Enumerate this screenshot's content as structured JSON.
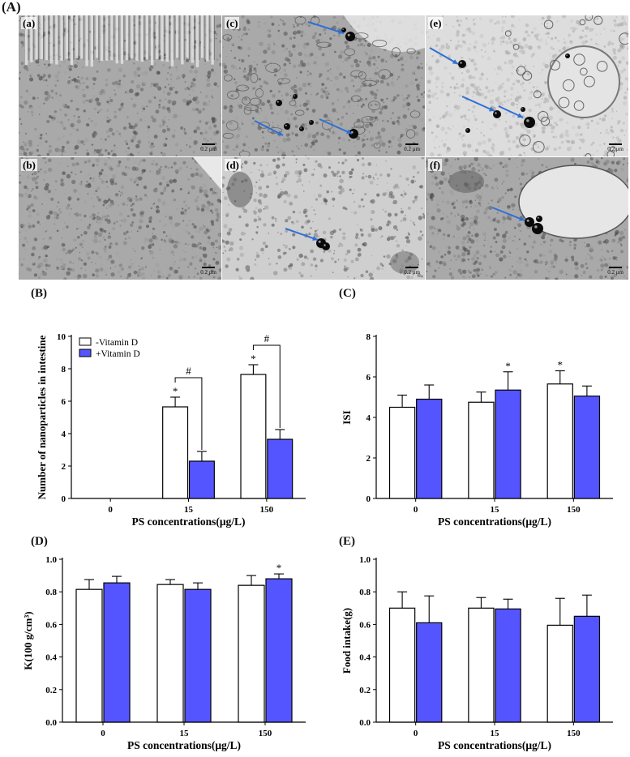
{
  "figure_label": "(A)",
  "em_panels": [
    {
      "id": "a",
      "label": "(a)",
      "scale": "0.2 μm",
      "arrows": 0,
      "variant": "villi"
    },
    {
      "id": "c",
      "label": "(c)",
      "scale": "0.2 μm",
      "arrows": 3,
      "variant": "particles"
    },
    {
      "id": "e",
      "label": "(e)",
      "scale": "0.2 μm",
      "arrows": 3,
      "variant": "vesicle"
    },
    {
      "id": "b",
      "label": "(b)",
      "scale": "0.2 μm",
      "arrows": 0,
      "variant": "dense"
    },
    {
      "id": "d",
      "label": "(d)",
      "scale": "0.2 μm",
      "arrows": 1,
      "variant": "sparse"
    },
    {
      "id": "f",
      "label": "(f)",
      "scale": "0.2 μm",
      "arrows": 1,
      "variant": "vesicle2"
    }
  ],
  "colors": {
    "minus_vitd": "#ffffff",
    "plus_vitd": "#5555ff",
    "arrow": "#2f6fd6",
    "axis": "#000000"
  },
  "chart_data": [
    {
      "panel": "(B)",
      "type": "bar",
      "categories": [
        "0",
        "15",
        "150"
      ],
      "xlabel": "PS concentrations(μg/L)",
      "ylabel": "Number of nanoparticles in intestine",
      "ylim": [
        0,
        10
      ],
      "yticks": [
        "0",
        "2",
        "4",
        "6",
        "8",
        "10"
      ],
      "legend": [
        "-Vitamin D",
        "+Vitamin D"
      ],
      "legend_position": "top-left",
      "series": [
        {
          "name": "-Vitamin D",
          "values": [
            0,
            5.65,
            7.65
          ],
          "errors": [
            0,
            0.6,
            0.6
          ],
          "stars": [
            "",
            "*",
            "*"
          ]
        },
        {
          "name": "+Vitamin D",
          "values": [
            0,
            2.3,
            3.65
          ],
          "errors": [
            0,
            0.6,
            0.6
          ],
          "stars": [
            "",
            "",
            ""
          ]
        }
      ],
      "brackets": [
        {
          "category": 1,
          "symbol": "#"
        },
        {
          "category": 2,
          "symbol": "#"
        }
      ]
    },
    {
      "panel": "(C)",
      "type": "bar",
      "categories": [
        "0",
        "15",
        "150"
      ],
      "xlabel": "PS concentrations(μg/L)",
      "ylabel": "ISI",
      "ylim": [
        0,
        8
      ],
      "yticks": [
        "0",
        "2",
        "4",
        "6",
        "8"
      ],
      "series": [
        {
          "name": "-Vitamin D",
          "values": [
            4.5,
            4.75,
            5.65
          ],
          "errors": [
            0.6,
            0.5,
            0.65
          ],
          "stars": [
            "",
            "",
            "*"
          ]
        },
        {
          "name": "+Vitamin D",
          "values": [
            4.9,
            5.35,
            5.05
          ],
          "errors": [
            0.7,
            0.9,
            0.5
          ],
          "stars": [
            "",
            "*",
            ""
          ]
        }
      ]
    },
    {
      "panel": "(D)",
      "type": "bar",
      "categories": [
        "0",
        "15",
        "150"
      ],
      "xlabel": "PS concentrations(μg/L)",
      "ylabel": "K(100 g/cm³)",
      "ylim": [
        0,
        1.0
      ],
      "yticks": [
        "0.0",
        "0.2",
        "0.4",
        "0.6",
        "0.8",
        "1.0"
      ],
      "series": [
        {
          "name": "-Vitamin D",
          "values": [
            0.815,
            0.845,
            0.84
          ],
          "errors": [
            0.06,
            0.03,
            0.06
          ],
          "stars": [
            "",
            "",
            ""
          ]
        },
        {
          "name": "+Vitamin D",
          "values": [
            0.855,
            0.815,
            0.88
          ],
          "errors": [
            0.04,
            0.04,
            0.03
          ],
          "stars": [
            "",
            "",
            "*"
          ]
        }
      ]
    },
    {
      "panel": "(E)",
      "type": "bar",
      "categories": [
        "0",
        "15",
        "150"
      ],
      "xlabel": "PS concentrations(μg/L)",
      "ylabel": "Food intake(g)",
      "ylim": [
        0,
        1.0
      ],
      "yticks": [
        "0.0",
        "0.2",
        "0.4",
        "0.6",
        "0.8",
        "1.0"
      ],
      "series": [
        {
          "name": "-Vitamin D",
          "values": [
            0.7,
            0.7,
            0.595
          ],
          "errors": [
            0.1,
            0.065,
            0.165
          ],
          "stars": [
            "",
            "",
            ""
          ]
        },
        {
          "name": "+Vitamin D",
          "values": [
            0.61,
            0.695,
            0.65
          ],
          "errors": [
            0.165,
            0.06,
            0.13
          ],
          "stars": [
            "",
            "",
            ""
          ]
        }
      ]
    }
  ]
}
